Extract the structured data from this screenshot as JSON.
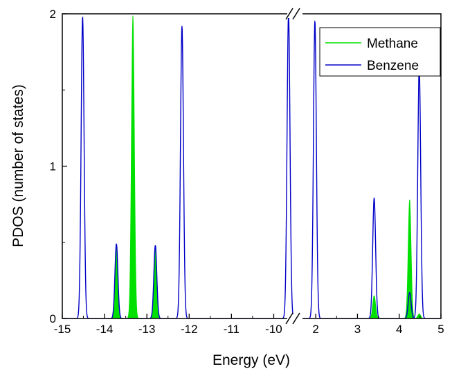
{
  "chart_data": {
    "type": "line",
    "xlabel": "Energy (eV)",
    "ylabel": "PDOS (number of states)",
    "axis_break": "broken x axis between -9.5 and 1.5 eV",
    "left_panel": {
      "xlim": [
        -15,
        -9.5
      ],
      "xticks": [
        "-15",
        "-14",
        "-13",
        "-12",
        "-11",
        "-10"
      ]
    },
    "right_panel": {
      "xlim": [
        1.5,
        5
      ],
      "xticks": [
        "2",
        "3",
        "4",
        "5"
      ]
    },
    "ylim": [
      0,
      2
    ],
    "yticks": [
      "0",
      "1",
      "2"
    ],
    "legend": {
      "placement": "top-right",
      "entries": [
        "Methane",
        "Benzene"
      ]
    },
    "series": [
      {
        "name": "Methane",
        "color": "#00e000",
        "style": "filled",
        "peaks": [
          {
            "x": -13.72,
            "y": 0.49
          },
          {
            "x": -13.33,
            "y": 1.99
          },
          {
            "x": -12.8,
            "y": 0.48
          },
          {
            "x": 3.4,
            "y": 0.15
          },
          {
            "x": 4.25,
            "y": 0.78
          },
          {
            "x": 4.48,
            "y": 0.03
          }
        ]
      },
      {
        "name": "Benzene",
        "color": "#0000c8",
        "style": "line",
        "peaks": [
          {
            "x": -14.52,
            "y": 1.98
          },
          {
            "x": -13.72,
            "y": 0.49
          },
          {
            "x": -12.8,
            "y": 0.48
          },
          {
            "x": -12.17,
            "y": 1.92
          },
          {
            "x": -9.65,
            "y": 2.0
          },
          {
            "x": 1.98,
            "y": 1.95
          },
          {
            "x": 3.4,
            "y": 0.79
          },
          {
            "x": 4.25,
            "y": 0.17
          },
          {
            "x": 4.48,
            "y": 1.65
          }
        ]
      }
    ]
  }
}
